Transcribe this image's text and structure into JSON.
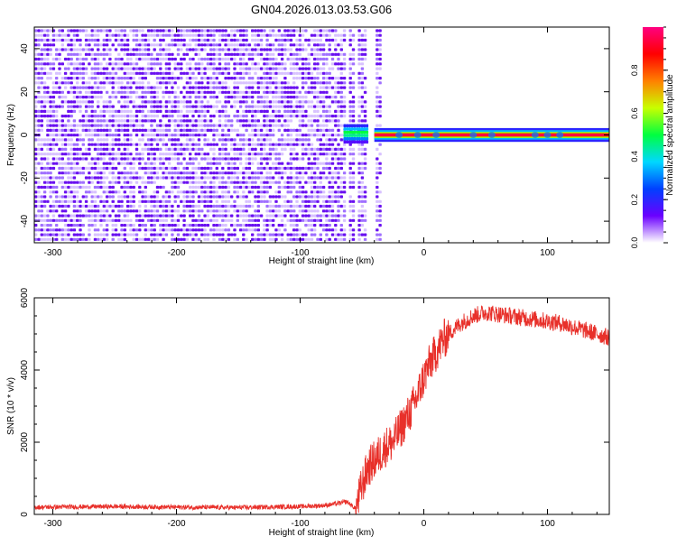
{
  "title": "GN04.2026.013.03.53.G06",
  "chart_data": [
    {
      "type": "heatmap",
      "title": "GN04.2026.013.03.53.G06",
      "xlabel": "Height of straight line (km)",
      "ylabel": "Frequency (Hz)",
      "xlim": [
        -315,
        150
      ],
      "ylim": [
        -50,
        50
      ],
      "xticks": [
        -300,
        -200,
        -100,
        0,
        100
      ],
      "yticks": [
        -40,
        -20,
        0,
        20,
        40
      ],
      "noise_region_x": [
        -315,
        -35
      ],
      "signal_line": {
        "x": [
          -40,
          150
        ],
        "y": 0
      },
      "colorbar": {
        "label": "Normalized spectral amplitude",
        "range": [
          0,
          1
        ],
        "ticks": [
          "0.0",
          "0.2",
          "0.4",
          "0.6",
          "0.8"
        ],
        "colormap": [
          "#ffffff",
          "#6a00ff",
          "#0040ff",
          "#00d8ff",
          "#00ff40",
          "#c8ff00",
          "#ff8000",
          "#ff0000",
          "#ff0080"
        ]
      }
    },
    {
      "type": "line",
      "xlabel": "Height of straight line (km)",
      "ylabel": "SNR (10 * v/v)",
      "xlim": [
        -315,
        150
      ],
      "ylim": [
        0,
        6000
      ],
      "xticks": [
        -300,
        -200,
        -100,
        0,
        100
      ],
      "yticks": [
        0,
        2000,
        4000,
        6000
      ],
      "color": "#e8302a",
      "series": [
        {
          "name": "SNR",
          "x": [
            -315,
            -250,
            -200,
            -150,
            -100,
            -80,
            -70,
            -62,
            -55,
            -50,
            -45,
            -40,
            -35,
            -30,
            -25,
            -20,
            -15,
            -10,
            -5,
            0,
            5,
            10,
            15,
            20,
            30,
            40,
            50,
            60,
            70,
            80,
            90,
            100,
            110,
            120,
            130,
            140,
            150
          ],
          "y": [
            200,
            220,
            200,
            190,
            220,
            250,
            300,
            350,
            150,
            800,
            1300,
            1500,
            1700,
            1900,
            2000,
            2300,
            2600,
            2900,
            3300,
            3800,
            4200,
            4500,
            4800,
            5000,
            5300,
            5500,
            5600,
            5550,
            5500,
            5450,
            5400,
            5350,
            5300,
            5200,
            5100,
            5000,
            4900
          ]
        }
      ]
    }
  ]
}
